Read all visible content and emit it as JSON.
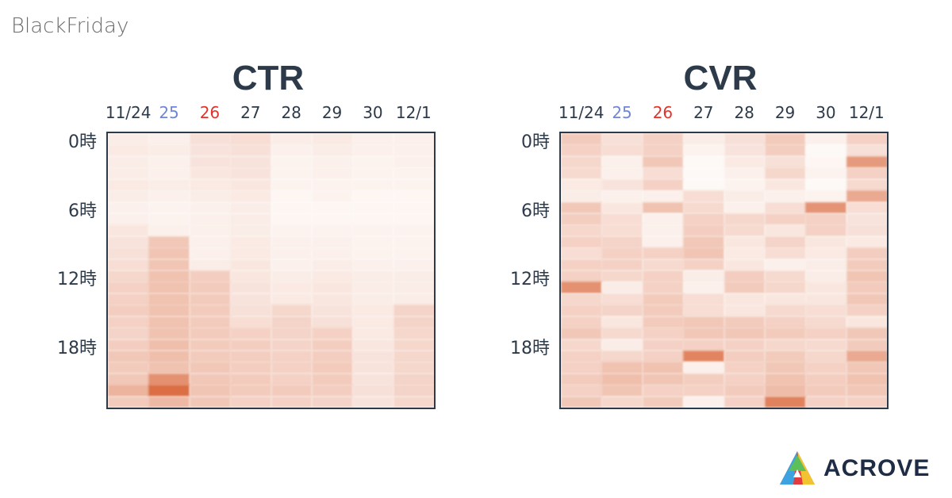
{
  "page_label": "BlackFriday",
  "brand": {
    "name": "ACROVE",
    "logo_icon": "acrove-triangle-logo-icon"
  },
  "colors": {
    "heat_high": "#d9663a",
    "weekday": "#2d3a4a",
    "saturday": "#6f86d6",
    "sunday": "#e0332b"
  },
  "chart_data": [
    {
      "type": "heatmap",
      "title": "CTR",
      "x_categories": [
        "11/24",
        "25",
        "26",
        "27",
        "28",
        "29",
        "30",
        "12/1"
      ],
      "x_category_colors": [
        "weekday",
        "saturday",
        "sunday",
        "weekday",
        "weekday",
        "weekday",
        "weekday",
        "weekday"
      ],
      "y_tick_labels": [
        "0時",
        "6時",
        "12時",
        "18時"
      ],
      "y_tick_hours": [
        0,
        6,
        12,
        18
      ],
      "hours": 24,
      "values": [
        [
          0.12,
          0.1,
          0.2,
          0.22,
          0.12,
          0.14,
          0.1,
          0.1
        ],
        [
          0.14,
          0.12,
          0.18,
          0.2,
          0.1,
          0.12,
          0.1,
          0.1
        ],
        [
          0.12,
          0.1,
          0.18,
          0.18,
          0.08,
          0.1,
          0.08,
          0.1
        ],
        [
          0.12,
          0.1,
          0.16,
          0.18,
          0.08,
          0.1,
          0.08,
          0.08
        ],
        [
          0.14,
          0.12,
          0.14,
          0.16,
          0.08,
          0.08,
          0.08,
          0.08
        ],
        [
          0.12,
          0.1,
          0.12,
          0.14,
          0.06,
          0.08,
          0.06,
          0.06
        ],
        [
          0.1,
          0.08,
          0.1,
          0.12,
          0.06,
          0.06,
          0.06,
          0.06
        ],
        [
          0.1,
          0.08,
          0.1,
          0.12,
          0.06,
          0.06,
          0.06,
          0.06
        ],
        [
          0.16,
          0.1,
          0.1,
          0.12,
          0.08,
          0.08,
          0.08,
          0.08
        ],
        [
          0.18,
          0.36,
          0.1,
          0.14,
          0.1,
          0.1,
          0.08,
          0.08
        ],
        [
          0.2,
          0.38,
          0.1,
          0.14,
          0.1,
          0.1,
          0.08,
          0.08
        ],
        [
          0.22,
          0.38,
          0.12,
          0.16,
          0.1,
          0.12,
          0.1,
          0.1
        ],
        [
          0.26,
          0.4,
          0.32,
          0.16,
          0.12,
          0.14,
          0.12,
          0.12
        ],
        [
          0.3,
          0.4,
          0.34,
          0.18,
          0.14,
          0.16,
          0.12,
          0.12
        ],
        [
          0.3,
          0.4,
          0.34,
          0.18,
          0.14,
          0.16,
          0.12,
          0.12
        ],
        [
          0.32,
          0.4,
          0.34,
          0.2,
          0.26,
          0.18,
          0.14,
          0.28
        ],
        [
          0.3,
          0.4,
          0.34,
          0.22,
          0.28,
          0.2,
          0.14,
          0.28
        ],
        [
          0.28,
          0.4,
          0.34,
          0.3,
          0.28,
          0.3,
          0.14,
          0.26
        ],
        [
          0.32,
          0.42,
          0.34,
          0.32,
          0.28,
          0.32,
          0.16,
          0.26
        ],
        [
          0.36,
          0.42,
          0.34,
          0.32,
          0.3,
          0.32,
          0.18,
          0.26
        ],
        [
          0.34,
          0.4,
          0.36,
          0.32,
          0.3,
          0.34,
          0.18,
          0.26
        ],
        [
          0.36,
          0.72,
          0.36,
          0.34,
          0.3,
          0.34,
          0.18,
          0.28
        ],
        [
          0.5,
          0.95,
          0.38,
          0.34,
          0.34,
          0.32,
          0.2,
          0.28
        ],
        [
          0.34,
          0.46,
          0.36,
          0.3,
          0.3,
          0.28,
          0.18,
          0.26
        ]
      ]
    },
    {
      "type": "heatmap",
      "title": "CVR",
      "x_categories": [
        "11/24",
        "25",
        "26",
        "27",
        "28",
        "29",
        "30",
        "12/1"
      ],
      "x_category_colors": [
        "weekday",
        "saturday",
        "sunday",
        "weekday",
        "weekday",
        "weekday",
        "weekday",
        "weekday"
      ],
      "y_tick_labels": [
        "0時",
        "6時",
        "12時",
        "18時"
      ],
      "y_tick_hours": [
        0,
        6,
        12,
        18
      ],
      "hours": 24,
      "values": [
        [
          0.34,
          0.2,
          0.3,
          0.12,
          0.2,
          0.34,
          0.1,
          0.3
        ],
        [
          0.3,
          0.22,
          0.3,
          0.08,
          0.18,
          0.32,
          0.04,
          0.2
        ],
        [
          0.26,
          0.1,
          0.36,
          0.04,
          0.14,
          0.2,
          0.06,
          0.66
        ],
        [
          0.24,
          0.1,
          0.22,
          0.04,
          0.1,
          0.26,
          0.08,
          0.3
        ],
        [
          0.14,
          0.18,
          0.3,
          0.04,
          0.08,
          0.16,
          0.04,
          0.24
        ],
        [
          0.12,
          0.1,
          0.1,
          0.22,
          0.12,
          0.1,
          0.08,
          0.56
        ],
        [
          0.36,
          0.16,
          0.4,
          0.24,
          0.1,
          0.22,
          0.7,
          0.22
        ],
        [
          0.32,
          0.22,
          0.1,
          0.3,
          0.26,
          0.3,
          0.3,
          0.18
        ],
        [
          0.26,
          0.22,
          0.1,
          0.32,
          0.24,
          0.16,
          0.3,
          0.2
        ],
        [
          0.3,
          0.28,
          0.1,
          0.36,
          0.16,
          0.28,
          0.16,
          0.14
        ],
        [
          0.22,
          0.3,
          0.3,
          0.38,
          0.14,
          0.22,
          0.14,
          0.32
        ],
        [
          0.3,
          0.3,
          0.24,
          0.3,
          0.16,
          0.1,
          0.12,
          0.34
        ],
        [
          0.3,
          0.26,
          0.3,
          0.12,
          0.32,
          0.24,
          0.12,
          0.38
        ],
        [
          0.72,
          0.12,
          0.3,
          0.1,
          0.34,
          0.26,
          0.16,
          0.34
        ],
        [
          0.26,
          0.22,
          0.34,
          0.22,
          0.16,
          0.16,
          0.16,
          0.36
        ],
        [
          0.3,
          0.28,
          0.34,
          0.22,
          0.16,
          0.24,
          0.22,
          0.3
        ],
        [
          0.3,
          0.16,
          0.34,
          0.36,
          0.34,
          0.3,
          0.24,
          0.16
        ],
        [
          0.36,
          0.24,
          0.3,
          0.36,
          0.36,
          0.34,
          0.3,
          0.36
        ],
        [
          0.26,
          0.12,
          0.3,
          0.3,
          0.3,
          0.26,
          0.24,
          0.34
        ],
        [
          0.3,
          0.26,
          0.3,
          0.8,
          0.32,
          0.34,
          0.26,
          0.56
        ],
        [
          0.3,
          0.4,
          0.4,
          0.1,
          0.3,
          0.36,
          0.3,
          0.36
        ],
        [
          0.34,
          0.42,
          0.38,
          0.32,
          0.3,
          0.4,
          0.32,
          0.4
        ],
        [
          0.3,
          0.38,
          0.3,
          0.3,
          0.34,
          0.44,
          0.34,
          0.36
        ],
        [
          0.36,
          0.26,
          0.34,
          0.1,
          0.3,
          0.82,
          0.3,
          0.3
        ]
      ]
    }
  ]
}
